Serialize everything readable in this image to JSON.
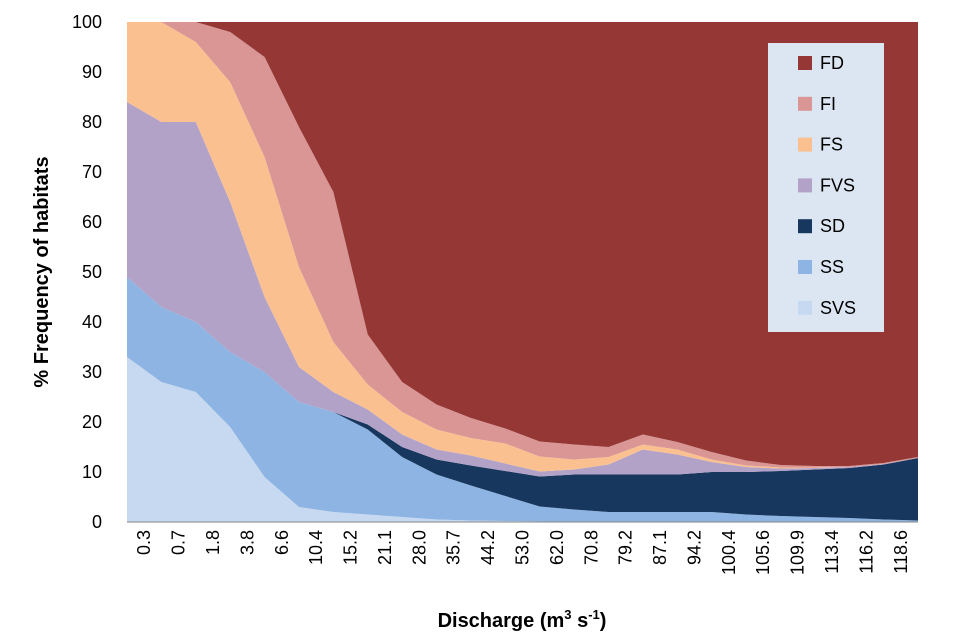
{
  "chart_data": {
    "type": "area",
    "stacked": true,
    "xlabel": "Discharge (m",
    "xlabel_sup": "3",
    "xlabel_mid": " s",
    "xlabel_sup2": "-1",
    "xlabel_end": ")",
    "ylabel": "% Frequency of habitats",
    "ylim": [
      0,
      100
    ],
    "yticks": [
      0,
      10,
      20,
      30,
      40,
      50,
      60,
      70,
      80,
      90,
      100
    ],
    "x_tick_labels": [
      "0.3",
      "0.7",
      "1.8",
      "3.8",
      "6.6",
      "10.4",
      "15.2",
      "21.1",
      "28.0",
      "35.7",
      "44.2",
      "53.0",
      "62.0",
      "70.8",
      "79.2",
      "87.1",
      "94.2",
      "100.4",
      "105.6",
      "109.9",
      "113.4",
      "116.2",
      "118.6"
    ],
    "legend_position": "top-right",
    "x_index": [
      0,
      2,
      4,
      6,
      8,
      10,
      12,
      14,
      16,
      18,
      20,
      22,
      24,
      26,
      28,
      30,
      32,
      34,
      36,
      38,
      40,
      42,
      44,
      46
    ],
    "series": [
      {
        "name": "SVS",
        "color": "#c6d9f1",
        "values": [
          33,
          28,
          26,
          19,
          9,
          3,
          2,
          1.5,
          1,
          0.5,
          0.3,
          0.2,
          0.1,
          0,
          0,
          0,
          0,
          0,
          0,
          0,
          0,
          0,
          0,
          0
        ]
      },
      {
        "name": "SS",
        "color": "#8db4e2",
        "values": [
          16,
          15,
          14,
          15,
          21,
          21,
          20,
          17,
          12,
          9,
          7,
          5,
          3,
          2.5,
          2,
          2,
          2,
          2,
          1.5,
          1.2,
          1,
          0.8,
          0.5,
          0.3
        ]
      },
      {
        "name": "SD",
        "color": "#17375e",
        "values": [
          0,
          0,
          0,
          0,
          0,
          0,
          0,
          1,
          2,
          3,
          4,
          5,
          6,
          7,
          7.5,
          7.5,
          7.5,
          8,
          8.5,
          9,
          9.5,
          10,
          11,
          12.5
        ]
      },
      {
        "name": "FVS",
        "color": "#b3a2c7",
        "values": [
          35,
          37,
          40,
          30,
          15,
          7,
          4,
          3,
          2.5,
          2,
          2,
          1.5,
          1,
          1,
          2,
          5,
          4,
          2,
          1,
          0.5,
          0.3,
          0.2,
          0.1,
          0
        ]
      },
      {
        "name": "FS",
        "color": "#fac090",
        "values": [
          16,
          20,
          16,
          24,
          28,
          20,
          10,
          5,
          4.5,
          4,
          3.5,
          4,
          3,
          2,
          1.5,
          1,
          1,
          0.5,
          0.3,
          0.2,
          0.1,
          0,
          0,
          0
        ]
      },
      {
        "name": "FI",
        "color": "#d99694",
        "values": [
          0,
          0,
          4,
          10,
          20,
          28,
          30,
          10,
          6,
          5,
          4,
          3,
          3,
          3,
          2,
          2,
          1.5,
          1.5,
          1,
          0.5,
          0.3,
          0.2,
          0.2,
          0.2
        ]
      },
      {
        "name": "FD",
        "color": "#953735",
        "values": [
          0,
          0,
          0,
          2,
          7,
          21,
          34,
          62.5,
          72,
          76.5,
          79.2,
          81.3,
          83.9,
          84.5,
          85,
          82.5,
          84,
          86,
          87.7,
          88.6,
          88.8,
          88.8,
          88.2,
          87
        ]
      }
    ],
    "legend_order": [
      "FD",
      "FI",
      "FS",
      "FVS",
      "SD",
      "SS",
      "SVS"
    ]
  }
}
